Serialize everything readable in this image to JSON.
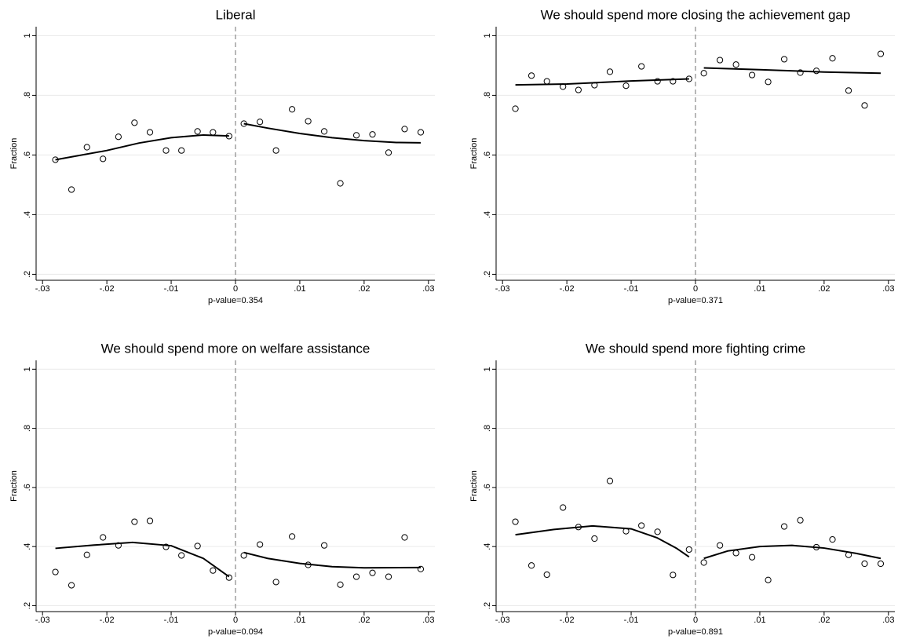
{
  "chart_data": [
    {
      "type": "scatter",
      "title": "Liberal",
      "ylabel": "Fraction",
      "xlabel": "p-value=0.354",
      "x": [
        -0.028,
        -0.0255,
        -0.0231,
        -0.0206,
        -0.0182,
        -0.0157,
        -0.0133,
        -0.0108,
        -0.0084,
        -0.0059,
        -0.0035,
        -0.001,
        0.0013,
        0.0038,
        0.0063,
        0.0088,
        0.0113,
        0.0138,
        0.0163,
        0.0188,
        0.0213,
        0.0238,
        0.0263,
        0.0288
      ],
      "values": [
        0.584,
        0.484,
        0.626,
        0.587,
        0.661,
        0.708,
        0.676,
        0.615,
        0.615,
        0.679,
        0.676,
        0.663,
        0.705,
        0.711,
        0.615,
        0.753,
        0.713,
        0.679,
        0.505,
        0.666,
        0.669,
        0.608,
        0.687,
        0.676
      ],
      "fit": [
        {
          "x": [
            -0.028,
            -0.02,
            -0.015,
            -0.01,
            -0.005,
            -0.001
          ],
          "values": [
            0.584,
            0.615,
            0.64,
            0.658,
            0.667,
            0.664
          ]
        },
        {
          "x": [
            0.0013,
            0.005,
            0.01,
            0.015,
            0.02,
            0.025,
            0.0288
          ],
          "values": [
            0.705,
            0.69,
            0.672,
            0.658,
            0.648,
            0.642,
            0.641
          ]
        }
      ],
      "reference_line": 0,
      "color": "#000000",
      "grid": true,
      "xlim": [
        -0.031,
        0.031
      ],
      "ylim": [
        0.18,
        1.03
      ],
      "xticks": [
        {
          "value": -0.03,
          "label": "-.03"
        },
        {
          "value": -0.02,
          "label": "-.02"
        },
        {
          "value": -0.01,
          "label": "-.01"
        },
        0,
        {
          "value": 0.01,
          "label": ".01"
        },
        {
          "value": 0.02,
          "label": ".02"
        },
        {
          "value": 0.03,
          "label": ".03"
        }
      ],
      "yticks": [
        {
          "value": 0.2,
          "label": ".2"
        },
        {
          "value": 0.4,
          "label": ".4"
        },
        {
          "value": 0.6,
          "label": ".6"
        },
        {
          "value": 0.8,
          "label": ".8"
        },
        1
      ]
    },
    {
      "type": "scatter",
      "title": "We should spend more closing the achievement gap",
      "ylabel": "Fraction",
      "xlabel": "p-value=0.371",
      "x": [
        -0.028,
        -0.0255,
        -0.0231,
        -0.0206,
        -0.0182,
        -0.0157,
        -0.0133,
        -0.0108,
        -0.0084,
        -0.0059,
        -0.0035,
        -0.001,
        0.0013,
        0.0038,
        0.0063,
        0.0088,
        0.0113,
        0.0138,
        0.0163,
        0.0188,
        0.0213,
        0.0238,
        0.0263,
        0.0288
      ],
      "values": [
        0.755,
        0.866,
        0.847,
        0.829,
        0.818,
        0.834,
        0.879,
        0.832,
        0.897,
        0.847,
        0.847,
        0.855,
        0.874,
        0.918,
        0.903,
        0.868,
        0.845,
        0.921,
        0.876,
        0.882,
        0.924,
        0.816,
        0.766,
        0.939
      ],
      "fit": [
        {
          "x": [
            -0.028,
            -0.02,
            -0.01,
            -0.001
          ],
          "values": [
            0.835,
            0.838,
            0.848,
            0.855
          ]
        },
        {
          "x": [
            0.0013,
            0.01,
            0.02,
            0.0288
          ],
          "values": [
            0.892,
            0.886,
            0.878,
            0.874
          ]
        }
      ],
      "reference_line": 0,
      "color": "#000000",
      "grid": true,
      "xlim": [
        -0.031,
        0.031
      ],
      "ylim": [
        0.18,
        1.03
      ],
      "xticks": [
        {
          "value": -0.03,
          "label": "-.03"
        },
        {
          "value": -0.02,
          "label": "-.02"
        },
        {
          "value": -0.01,
          "label": "-.01"
        },
        0,
        {
          "value": 0.01,
          "label": ".01"
        },
        {
          "value": 0.02,
          "label": ".02"
        },
        {
          "value": 0.03,
          "label": ".03"
        }
      ],
      "yticks": [
        {
          "value": 0.2,
          "label": ".2"
        },
        {
          "value": 0.4,
          "label": ".4"
        },
        {
          "value": 0.6,
          "label": ".6"
        },
        {
          "value": 0.8,
          "label": ".8"
        },
        1
      ]
    },
    {
      "type": "scatter",
      "title": "We should spend more on welfare assistance",
      "ylabel": "Fraction",
      "xlabel": "p-value=0.094",
      "x": [
        -0.028,
        -0.0255,
        -0.0231,
        -0.0206,
        -0.0182,
        -0.0157,
        -0.0133,
        -0.0108,
        -0.0084,
        -0.0059,
        -0.0035,
        -0.001,
        0.0013,
        0.0038,
        0.0063,
        0.0088,
        0.0113,
        0.0138,
        0.0163,
        0.0188,
        0.0213,
        0.0238,
        0.0263,
        0.0288
      ],
      "values": [
        0.314,
        0.269,
        0.372,
        0.431,
        0.404,
        0.484,
        0.487,
        0.399,
        0.37,
        0.402,
        0.319,
        0.295,
        0.37,
        0.407,
        0.28,
        0.434,
        0.338,
        0.404,
        0.271,
        0.298,
        0.311,
        0.298,
        0.431,
        0.324
      ],
      "fit": [
        {
          "x": [
            -0.028,
            -0.022,
            -0.016,
            -0.01,
            -0.005,
            -0.001
          ],
          "values": [
            0.394,
            0.405,
            0.414,
            0.403,
            0.36,
            0.298
          ]
        },
        {
          "x": [
            0.0013,
            0.005,
            0.01,
            0.015,
            0.02,
            0.0288
          ],
          "values": [
            0.38,
            0.36,
            0.343,
            0.332,
            0.328,
            0.329
          ]
        }
      ],
      "reference_line": 0,
      "color": "#000000",
      "grid": true,
      "xlim": [
        -0.031,
        0.031
      ],
      "ylim": [
        0.18,
        1.03
      ],
      "xticks": [
        {
          "value": -0.03,
          "label": "-.03"
        },
        {
          "value": -0.02,
          "label": "-.02"
        },
        {
          "value": -0.01,
          "label": "-.01"
        },
        0,
        {
          "value": 0.01,
          "label": ".01"
        },
        {
          "value": 0.02,
          "label": ".02"
        },
        {
          "value": 0.03,
          "label": ".03"
        }
      ],
      "yticks": [
        {
          "value": 0.2,
          "label": ".2"
        },
        {
          "value": 0.4,
          "label": ".4"
        },
        {
          "value": 0.6,
          "label": ".6"
        },
        {
          "value": 0.8,
          "label": ".8"
        },
        1
      ]
    },
    {
      "type": "scatter",
      "title": "We should spend more fighting crime",
      "ylabel": "Fraction",
      "xlabel": "p-value=0.891",
      "x": [
        -0.028,
        -0.0255,
        -0.0231,
        -0.0206,
        -0.0182,
        -0.0157,
        -0.0133,
        -0.0108,
        -0.0084,
        -0.0059,
        -0.0035,
        -0.001,
        0.0013,
        0.0038,
        0.0063,
        0.0088,
        0.0113,
        0.0138,
        0.0163,
        0.0188,
        0.0213,
        0.0238,
        0.0263,
        0.0288
      ],
      "values": [
        0.484,
        0.336,
        0.305,
        0.532,
        0.466,
        0.427,
        0.622,
        0.452,
        0.471,
        0.45,
        0.304,
        0.39,
        0.346,
        0.404,
        0.378,
        0.364,
        0.287,
        0.468,
        0.489,
        0.398,
        0.424,
        0.372,
        0.342,
        0.342
      ],
      "fit": [
        {
          "x": [
            -0.028,
            -0.022,
            -0.016,
            -0.01,
            -0.006,
            -0.003,
            -0.001
          ],
          "values": [
            0.44,
            0.458,
            0.47,
            0.46,
            0.43,
            0.395,
            0.365
          ]
        },
        {
          "x": [
            0.0013,
            0.005,
            0.01,
            0.015,
            0.02,
            0.025,
            0.0288
          ],
          "values": [
            0.36,
            0.385,
            0.4,
            0.404,
            0.395,
            0.377,
            0.36
          ]
        }
      ],
      "reference_line": 0,
      "color": "#000000",
      "grid": true,
      "xlim": [
        -0.031,
        0.031
      ],
      "ylim": [
        0.18,
        1.03
      ],
      "xticks": [
        {
          "value": -0.03,
          "label": "-.03"
        },
        {
          "value": -0.02,
          "label": "-.02"
        },
        {
          "value": -0.01,
          "label": "-.01"
        },
        0,
        {
          "value": 0.01,
          "label": ".01"
        },
        {
          "value": 0.02,
          "label": ".02"
        },
        {
          "value": 0.03,
          "label": ".03"
        }
      ],
      "yticks": [
        {
          "value": 0.2,
          "label": ".2"
        },
        {
          "value": 0.4,
          "label": ".4"
        },
        {
          "value": 0.6,
          "label": ".6"
        },
        {
          "value": 0.8,
          "label": ".8"
        },
        1
      ]
    }
  ]
}
